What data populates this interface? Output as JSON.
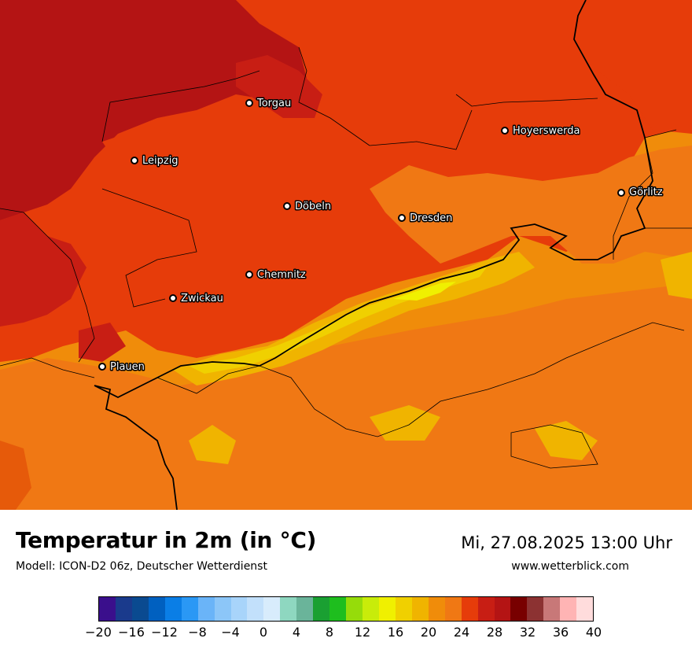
{
  "map": {
    "cities": [
      {
        "name": "Torgau"
      },
      {
        "name": "Hoyerswerda"
      },
      {
        "name": "Leipzig"
      },
      {
        "name": "Görlitz"
      },
      {
        "name": "Döbeln"
      },
      {
        "name": "Dresden"
      },
      {
        "name": "Chemnitz"
      },
      {
        "name": "Zwickau"
      },
      {
        "name": "Plauen"
      }
    ]
  },
  "header": {
    "title": "Temperatur in 2m (in °C)",
    "subtitle": "Modell: ICON-D2 06z, Deutscher Wetterdienst",
    "datetime": "Mi, 27.08.2025 13:00 Uhr",
    "website": "www.wetterblick.com"
  },
  "legend": {
    "colors": [
      "#3a0f8c",
      "#1a3a8c",
      "#0a4a90",
      "#0060c0",
      "#0a7ee6",
      "#2a98f5",
      "#6ab4f8",
      "#8cc6f8",
      "#a8d4fa",
      "#c2e0fb",
      "#d8ecfc",
      "#8ed7c0",
      "#6ab49a",
      "#1aa032",
      "#1ebe1e",
      "#96dc0a",
      "#c8ec0a",
      "#f0f000",
      "#f0d000",
      "#f0b400",
      "#f08c0a",
      "#f07814",
      "#e63c0a",
      "#c81e14",
      "#b41414",
      "#780000",
      "#8c3232",
      "#c87878",
      "#ffb4b4",
      "#ffdcdc"
    ],
    "ticks": [
      "−20",
      "−16",
      "−12",
      "−8",
      "−4",
      "0",
      "4",
      "8",
      "12",
      "16",
      "20",
      "24",
      "28",
      "32",
      "36",
      "40"
    ]
  }
}
